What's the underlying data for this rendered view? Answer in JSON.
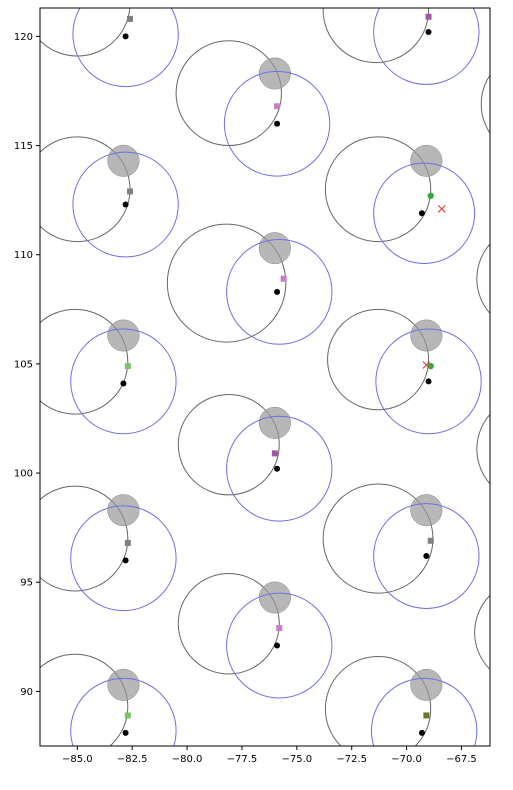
{
  "chart_data": {
    "type": "scatter",
    "title": "",
    "xlabel": "",
    "ylabel": "",
    "xlim": [
      -86.7,
      -66.2
    ],
    "ylim": [
      87.5,
      121.3
    ],
    "grid": false,
    "legend": "none",
    "x_ticks": [
      -85.0,
      -82.5,
      -80.0,
      -77.5,
      -75.0,
      -72.5,
      -70.0,
      -67.5
    ],
    "x_tick_labels": [
      "−85.0",
      "−82.5",
      "−80.0",
      "−77.5",
      "−75.0",
      "−72.5",
      "−70.0",
      "−67.5"
    ],
    "y_ticks": [
      90,
      95,
      100,
      105,
      110,
      115,
      120
    ],
    "y_tick_labels": [
      "90",
      "95",
      "100",
      "105",
      "110",
      "115",
      "120"
    ],
    "colors": {
      "large_circle": "#666666",
      "blue_circle": "#6f6fe6",
      "gray_disc": "#999999",
      "black_point": "#000000",
      "green_point": "#3aa63a",
      "red_cross": "#e04040"
    },
    "large_circles": [
      {
        "x": -85.0,
        "y": 121.5,
        "r": 2.4
      },
      {
        "x": -71.4,
        "y": 121.2,
        "r": 2.4
      },
      {
        "x": -78.1,
        "y": 117.4,
        "r": 2.4
      },
      {
        "x": -85.0,
        "y": 113.0,
        "r": 2.4
      },
      {
        "x": -71.3,
        "y": 113.0,
        "r": 2.4
      },
      {
        "x": -78.2,
        "y": 108.7,
        "r": 2.7
      },
      {
        "x": -85.1,
        "y": 105.1,
        "r": 2.4
      },
      {
        "x": -71.3,
        "y": 105.2,
        "r": 2.3
      },
      {
        "x": -78.1,
        "y": 101.3,
        "r": 2.3
      },
      {
        "x": -85.1,
        "y": 97.0,
        "r": 2.4
      },
      {
        "x": -71.3,
        "y": 97.0,
        "r": 2.5
      },
      {
        "x": -78.1,
        "y": 93.1,
        "r": 2.3
      },
      {
        "x": -85.1,
        "y": 89.3,
        "r": 2.4
      },
      {
        "x": -71.3,
        "y": 89.2,
        "r": 2.4
      },
      {
        "x": -64.2,
        "y": 116.9,
        "r": 2.4
      },
      {
        "x": -64.4,
        "y": 108.9,
        "r": 2.4
      },
      {
        "x": -64.4,
        "y": 101.1,
        "r": 2.4
      },
      {
        "x": -64.5,
        "y": 92.7,
        "r": 2.4
      }
    ],
    "blue_circles": [
      {
        "x": -82.8,
        "y": 120.1,
        "r": 2.4
      },
      {
        "x": -69.1,
        "y": 120.2,
        "r": 2.4
      },
      {
        "x": -75.9,
        "y": 116.0,
        "r": 2.4
      },
      {
        "x": -82.8,
        "y": 112.3,
        "r": 2.4
      },
      {
        "x": -69.2,
        "y": 111.9,
        "r": 2.3
      },
      {
        "x": -75.8,
        "y": 108.3,
        "r": 2.4
      },
      {
        "x": -82.9,
        "y": 104.2,
        "r": 2.4
      },
      {
        "x": -69.0,
        "y": 104.2,
        "r": 2.4
      },
      {
        "x": -75.8,
        "y": 100.2,
        "r": 2.4
      },
      {
        "x": -82.9,
        "y": 96.1,
        "r": 2.4
      },
      {
        "x": -69.1,
        "y": 96.2,
        "r": 2.4
      },
      {
        "x": -75.8,
        "y": 92.1,
        "r": 2.4
      },
      {
        "x": -82.9,
        "y": 88.2,
        "r": 2.4
      },
      {
        "x": -69.2,
        "y": 88.2,
        "r": 2.4
      }
    ],
    "gray_discs": [
      {
        "x": -76.0,
        "y": 118.3,
        "r": 0.72
      },
      {
        "x": -82.9,
        "y": 114.3,
        "r": 0.72
      },
      {
        "x": -69.1,
        "y": 114.3,
        "r": 0.72
      },
      {
        "x": -76.0,
        "y": 110.3,
        "r": 0.72
      },
      {
        "x": -82.9,
        "y": 106.3,
        "r": 0.72
      },
      {
        "x": -69.1,
        "y": 106.3,
        "r": 0.72
      },
      {
        "x": -76.0,
        "y": 102.3,
        "r": 0.72
      },
      {
        "x": -82.9,
        "y": 98.3,
        "r": 0.72
      },
      {
        "x": -69.1,
        "y": 98.3,
        "r": 0.72
      },
      {
        "x": -76.0,
        "y": 94.3,
        "r": 0.72
      },
      {
        "x": -82.9,
        "y": 90.3,
        "r": 0.72
      },
      {
        "x": -69.1,
        "y": 90.3,
        "r": 0.72
      }
    ],
    "black_points": [
      {
        "x": -82.8,
        "y": 120.0
      },
      {
        "x": -69.0,
        "y": 120.2
      },
      {
        "x": -75.9,
        "y": 116.0
      },
      {
        "x": -82.8,
        "y": 112.3
      },
      {
        "x": -69.3,
        "y": 111.9
      },
      {
        "x": -75.9,
        "y": 108.3
      },
      {
        "x": -82.9,
        "y": 104.1
      },
      {
        "x": -69.0,
        "y": 104.2
      },
      {
        "x": -75.9,
        "y": 100.2
      },
      {
        "x": -82.8,
        "y": 96.0
      },
      {
        "x": -69.1,
        "y": 96.2
      },
      {
        "x": -75.9,
        "y": 92.1
      },
      {
        "x": -82.8,
        "y": 88.1
      },
      {
        "x": -69.3,
        "y": 88.1
      }
    ],
    "square_markers": [
      {
        "x": -82.6,
        "y": 120.8,
        "color": "#808080"
      },
      {
        "x": -69.0,
        "y": 120.9,
        "color": "#9b59a0"
      },
      {
        "x": -75.9,
        "y": 116.8,
        "color": "#c77dc7"
      },
      {
        "x": -82.6,
        "y": 112.9,
        "color": "#808080"
      },
      {
        "x": -75.6,
        "y": 108.9,
        "color": "#c77dc7"
      },
      {
        "x": -82.7,
        "y": 104.9,
        "color": "#7cc46a"
      },
      {
        "x": -76.0,
        "y": 100.9,
        "color": "#9b59a0"
      },
      {
        "x": -82.7,
        "y": 96.8,
        "color": "#808080"
      },
      {
        "x": -68.9,
        "y": 96.9,
        "color": "#808080"
      },
      {
        "x": -75.8,
        "y": 92.9,
        "color": "#c77dc7"
      },
      {
        "x": -82.7,
        "y": 88.9,
        "color": "#7cc46a"
      },
      {
        "x": -69.1,
        "y": 88.9,
        "color": "#6b7a2a"
      }
    ],
    "green_points": [
      {
        "x": -68.9,
        "y": 112.7
      },
      {
        "x": -68.9,
        "y": 104.9
      }
    ],
    "red_crosses": [
      {
        "x": -68.4,
        "y": 112.1
      },
      {
        "x": -69.1,
        "y": 104.95
      }
    ]
  }
}
